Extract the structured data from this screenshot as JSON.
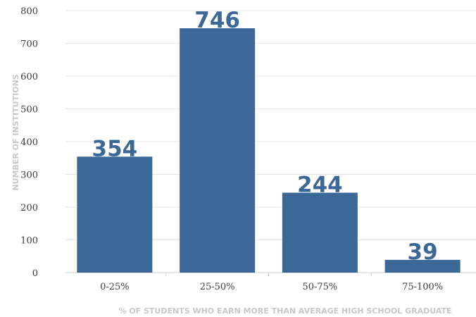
{
  "chart_data": {
    "type": "bar",
    "categories": [
      "0-25%",
      "25-50%",
      "50-75%",
      "75-100%"
    ],
    "values": [
      354,
      746,
      244,
      39
    ],
    "data_labels": [
      "354",
      "746",
      "244",
      "39"
    ],
    "xlabel": "% OF STUDENTS WHO EARN MORE THAN AVERAGE HIGH SCHOOL GRADUATE",
    "ylabel": "NUMBER OF INSTITUTIONS",
    "ylim": [
      0,
      800
    ],
    "yticks": [
      0,
      100,
      200,
      300,
      400,
      500,
      600,
      700,
      800
    ],
    "grid": true,
    "bar_color": "#3c6898",
    "label_color": "#3c6898"
  }
}
